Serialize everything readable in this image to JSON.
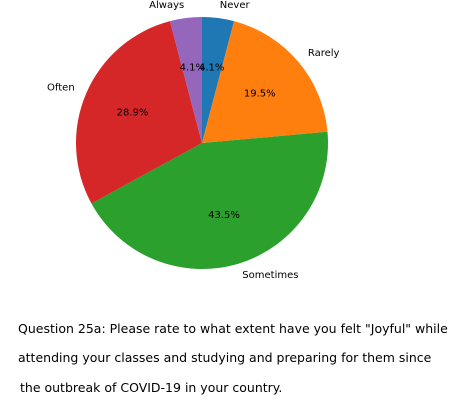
{
  "chart_data": {
    "type": "pie",
    "title": "",
    "slices": [
      {
        "label": "Never",
        "percent": 4.1,
        "pct_label": "4.1%",
        "color": "#1f77b4"
      },
      {
        "label": "Rarely",
        "percent": 19.5,
        "pct_label": "19.5%",
        "color": "#ff7f0e"
      },
      {
        "label": "Sometimes",
        "percent": 43.5,
        "pct_label": "43.5%",
        "color": "#2ca02c"
      },
      {
        "label": "Often",
        "percent": 28.9,
        "pct_label": "28.9%",
        "color": "#d62728"
      },
      {
        "label": "Always",
        "percent": 4.1,
        "pct_label": "4.1%",
        "color": "#9467bd"
      }
    ],
    "start_angle_deg": 90,
    "direction": "clockwise"
  },
  "caption": {
    "line1": "Question 25a: Please rate to what extent have you felt \"Joyful\" while",
    "line2": "attending your classes and studying and preparing for them since",
    "line3": "the outbreak of COVID-19 in your country."
  }
}
